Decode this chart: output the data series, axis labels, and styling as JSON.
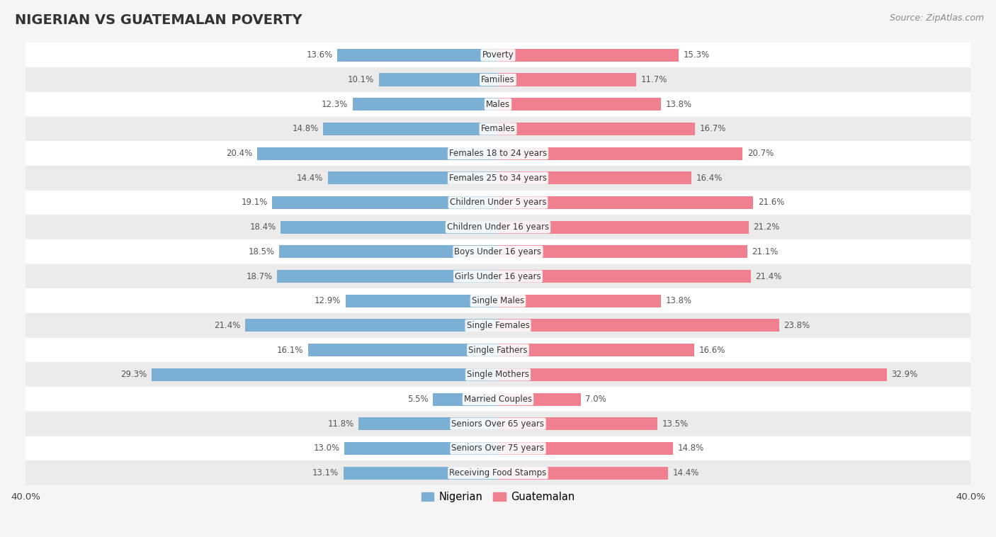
{
  "title": "NIGERIAN VS GUATEMALAN POVERTY",
  "source": "Source: ZipAtlas.com",
  "categories": [
    "Poverty",
    "Families",
    "Males",
    "Females",
    "Females 18 to 24 years",
    "Females 25 to 34 years",
    "Children Under 5 years",
    "Children Under 16 years",
    "Boys Under 16 years",
    "Girls Under 16 years",
    "Single Males",
    "Single Females",
    "Single Fathers",
    "Single Mothers",
    "Married Couples",
    "Seniors Over 65 years",
    "Seniors Over 75 years",
    "Receiving Food Stamps"
  ],
  "nigerian": [
    13.6,
    10.1,
    12.3,
    14.8,
    20.4,
    14.4,
    19.1,
    18.4,
    18.5,
    18.7,
    12.9,
    21.4,
    16.1,
    29.3,
    5.5,
    11.8,
    13.0,
    13.1
  ],
  "guatemalan": [
    15.3,
    11.7,
    13.8,
    16.7,
    20.7,
    16.4,
    21.6,
    21.2,
    21.1,
    21.4,
    13.8,
    23.8,
    16.6,
    32.9,
    7.0,
    13.5,
    14.8,
    14.4
  ],
  "nigerian_color": "#7BAFD4",
  "guatemalan_color": "#F08090",
  "background_color": "#f5f5f5",
  "row_bg_light": "#ffffff",
  "row_bg_dark": "#ebebeb",
  "bar_height": 0.52,
  "legend_nigerian": "Nigerian",
  "legend_guatemalan": "Guatemalan",
  "title_fontsize": 14,
  "label_fontsize": 8.5,
  "cat_fontsize": 8.5,
  "source_fontsize": 9
}
